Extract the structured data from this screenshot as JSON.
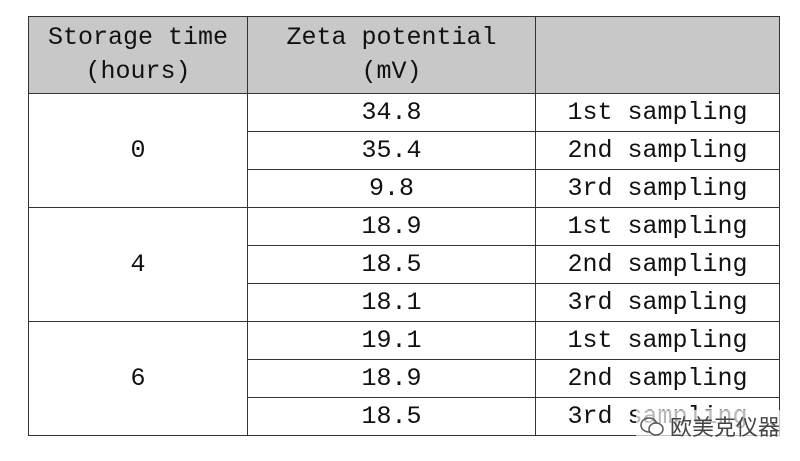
{
  "table": {
    "header": [
      [
        "Storage time",
        "(hours)"
      ],
      [
        "Zeta potential",
        "(mV)"
      ]
    ],
    "groups": [
      {
        "time": "0",
        "rows": [
          [
            "34.8",
            "1st sampling"
          ],
          [
            "35.4",
            "2nd sampling"
          ],
          [
            "9.8",
            "3rd sampling"
          ]
        ]
      },
      {
        "time": "4",
        "rows": [
          [
            "18.9",
            "1st sampling"
          ],
          [
            "18.5",
            "2nd sampling"
          ],
          [
            "18.1",
            "3rd sampling"
          ]
        ]
      },
      {
        "time": "6",
        "rows": [
          [
            "19.1",
            "1st sampling"
          ],
          [
            "18.9",
            "2nd sampling"
          ],
          [
            "18.5",
            "3rd sampling"
          ]
        ]
      }
    ]
  },
  "watermark": "欧美克仪器"
}
